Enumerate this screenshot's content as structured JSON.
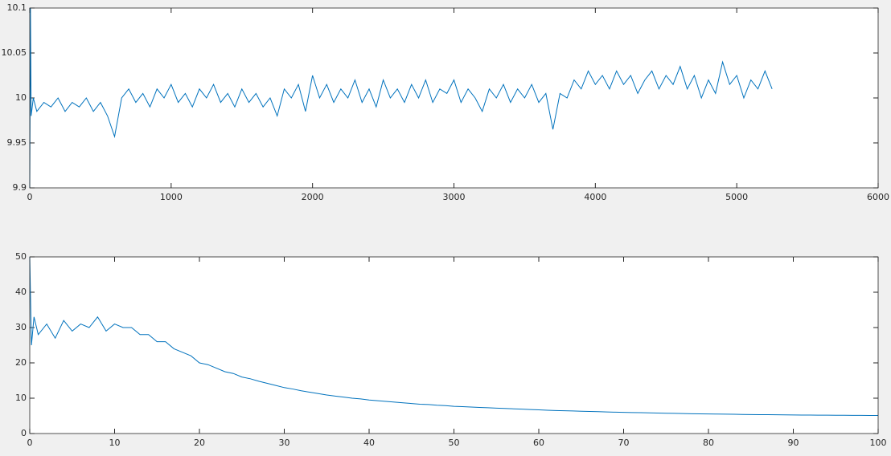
{
  "chart_data": [
    {
      "type": "line",
      "color": "#0072bd",
      "grid": false,
      "xlim": [
        0,
        6000
      ],
      "ylim": [
        9.9,
        10.1
      ],
      "xticks": [
        0,
        1000,
        2000,
        3000,
        4000,
        5000,
        6000
      ],
      "yticks": [
        9.9,
        9.95,
        10,
        10.05,
        10.1
      ],
      "x": [
        0,
        5,
        10,
        25,
        50,
        100,
        150,
        200,
        250,
        300,
        350,
        400,
        450,
        500,
        550,
        600,
        650,
        700,
        750,
        800,
        850,
        900,
        950,
        1000,
        1050,
        1100,
        1150,
        1200,
        1250,
        1300,
        1350,
        1400,
        1450,
        1500,
        1550,
        1600,
        1650,
        1700,
        1750,
        1800,
        1850,
        1900,
        1950,
        2000,
        2050,
        2100,
        2150,
        2200,
        2250,
        2300,
        2350,
        2400,
        2450,
        2500,
        2550,
        2600,
        2650,
        2700,
        2750,
        2800,
        2850,
        2900,
        2950,
        3000,
        3050,
        3100,
        3150,
        3200,
        3250,
        3300,
        3350,
        3400,
        3450,
        3500,
        3550,
        3600,
        3650,
        3700,
        3750,
        3800,
        3850,
        3900,
        3950,
        4000,
        4050,
        4100,
        4150,
        4200,
        4250,
        4300,
        4350,
        4400,
        4450,
        4500,
        4550,
        4600,
        4650,
        4700,
        4750,
        4800,
        4850,
        4900,
        4950,
        5000,
        5050,
        5100,
        5150,
        5200,
        5250
      ],
      "values": [
        9.9,
        10.1,
        9.98,
        10.0,
        9.985,
        9.995,
        9.99,
        10.0,
        9.985,
        9.995,
        9.99,
        10.0,
        9.985,
        9.995,
        9.98,
        9.957,
        10.0,
        10.01,
        9.995,
        10.005,
        9.99,
        10.01,
        10.0,
        10.015,
        9.995,
        10.005,
        9.99,
        10.01,
        10.0,
        10.015,
        9.995,
        10.005,
        9.99,
        10.01,
        9.995,
        10.005,
        9.99,
        10.0,
        9.98,
        10.01,
        10.0,
        10.015,
        9.985,
        10.025,
        10.0,
        10.015,
        9.995,
        10.01,
        10.0,
        10.02,
        9.995,
        10.01,
        9.99,
        10.02,
        10.0,
        10.01,
        9.995,
        10.015,
        10.0,
        10.02,
        9.995,
        10.01,
        10.005,
        10.02,
        9.995,
        10.01,
        10.0,
        9.985,
        10.01,
        10.0,
        10.015,
        9.995,
        10.01,
        10.0,
        10.015,
        9.995,
        10.005,
        9.965,
        10.005,
        10.0,
        10.02,
        10.01,
        10.03,
        10.015,
        10.025,
        10.01,
        10.03,
        10.015,
        10.025,
        10.005,
        10.02,
        10.03,
        10.01,
        10.025,
        10.015,
        10.035,
        10.01,
        10.025,
        10.0,
        10.02,
        10.005,
        10.04,
        10.015,
        10.025,
        10.0,
        10.02,
        10.01,
        10.03,
        10.01
      ]
    },
    {
      "type": "line",
      "color": "#0072bd",
      "grid": false,
      "xlim": [
        0,
        100
      ],
      "ylim": [
        0,
        50
      ],
      "xticks": [
        0,
        10,
        20,
        30,
        40,
        50,
        60,
        70,
        80,
        90,
        100
      ],
      "yticks": [
        0,
        10,
        20,
        30,
        40,
        50
      ],
      "x": [
        0,
        0.2,
        0.5,
        1,
        2,
        3,
        4,
        5,
        6,
        7,
        8,
        9,
        10,
        11,
        12,
        13,
        14,
        15,
        16,
        17,
        18,
        19,
        20,
        21,
        22,
        23,
        24,
        25,
        26,
        27,
        28,
        29,
        30,
        31,
        32,
        33,
        34,
        35,
        36,
        37,
        38,
        39,
        40,
        41,
        42,
        43,
        44,
        45,
        46,
        47,
        48,
        49,
        50,
        51,
        52,
        53,
        54,
        55,
        56,
        57,
        58,
        59,
        60,
        61,
        62,
        63,
        64,
        65,
        66,
        67,
        68,
        69,
        70,
        71,
        72,
        73,
        74,
        75,
        76,
        77,
        78,
        79,
        80,
        81,
        82,
        83,
        84,
        85,
        86,
        87,
        88,
        89,
        90,
        91,
        92,
        93,
        94,
        95,
        96,
        97,
        98,
        99,
        100
      ],
      "values": [
        50,
        25,
        33,
        28,
        31,
        27,
        32,
        29,
        31,
        30,
        33,
        29,
        31,
        30,
        30,
        28,
        28,
        26,
        26,
        24,
        23,
        22,
        20,
        19.5,
        18.5,
        17.5,
        17,
        16,
        15.5,
        14.8,
        14.2,
        13.6,
        13,
        12.6,
        12.1,
        11.7,
        11.3,
        10.9,
        10.6,
        10.3,
        10,
        9.8,
        9.5,
        9.3,
        9.1,
        8.9,
        8.7,
        8.5,
        8.3,
        8.2,
        8,
        7.9,
        7.7,
        7.6,
        7.5,
        7.4,
        7.3,
        7.2,
        7.1,
        7.0,
        6.9,
        6.8,
        6.7,
        6.6,
        6.5,
        6.45,
        6.4,
        6.3,
        6.25,
        6.2,
        6.1,
        6.05,
        6.0,
        5.95,
        5.9,
        5.85,
        5.8,
        5.75,
        5.7,
        5.65,
        5.6,
        5.58,
        5.55,
        5.5,
        5.47,
        5.44,
        5.4,
        5.38,
        5.35,
        5.33,
        5.3,
        5.28,
        5.26,
        5.24,
        5.22,
        5.2,
        5.19,
        5.17,
        5.16,
        5.15,
        5.13,
        5.12,
        5.1
      ]
    }
  ]
}
